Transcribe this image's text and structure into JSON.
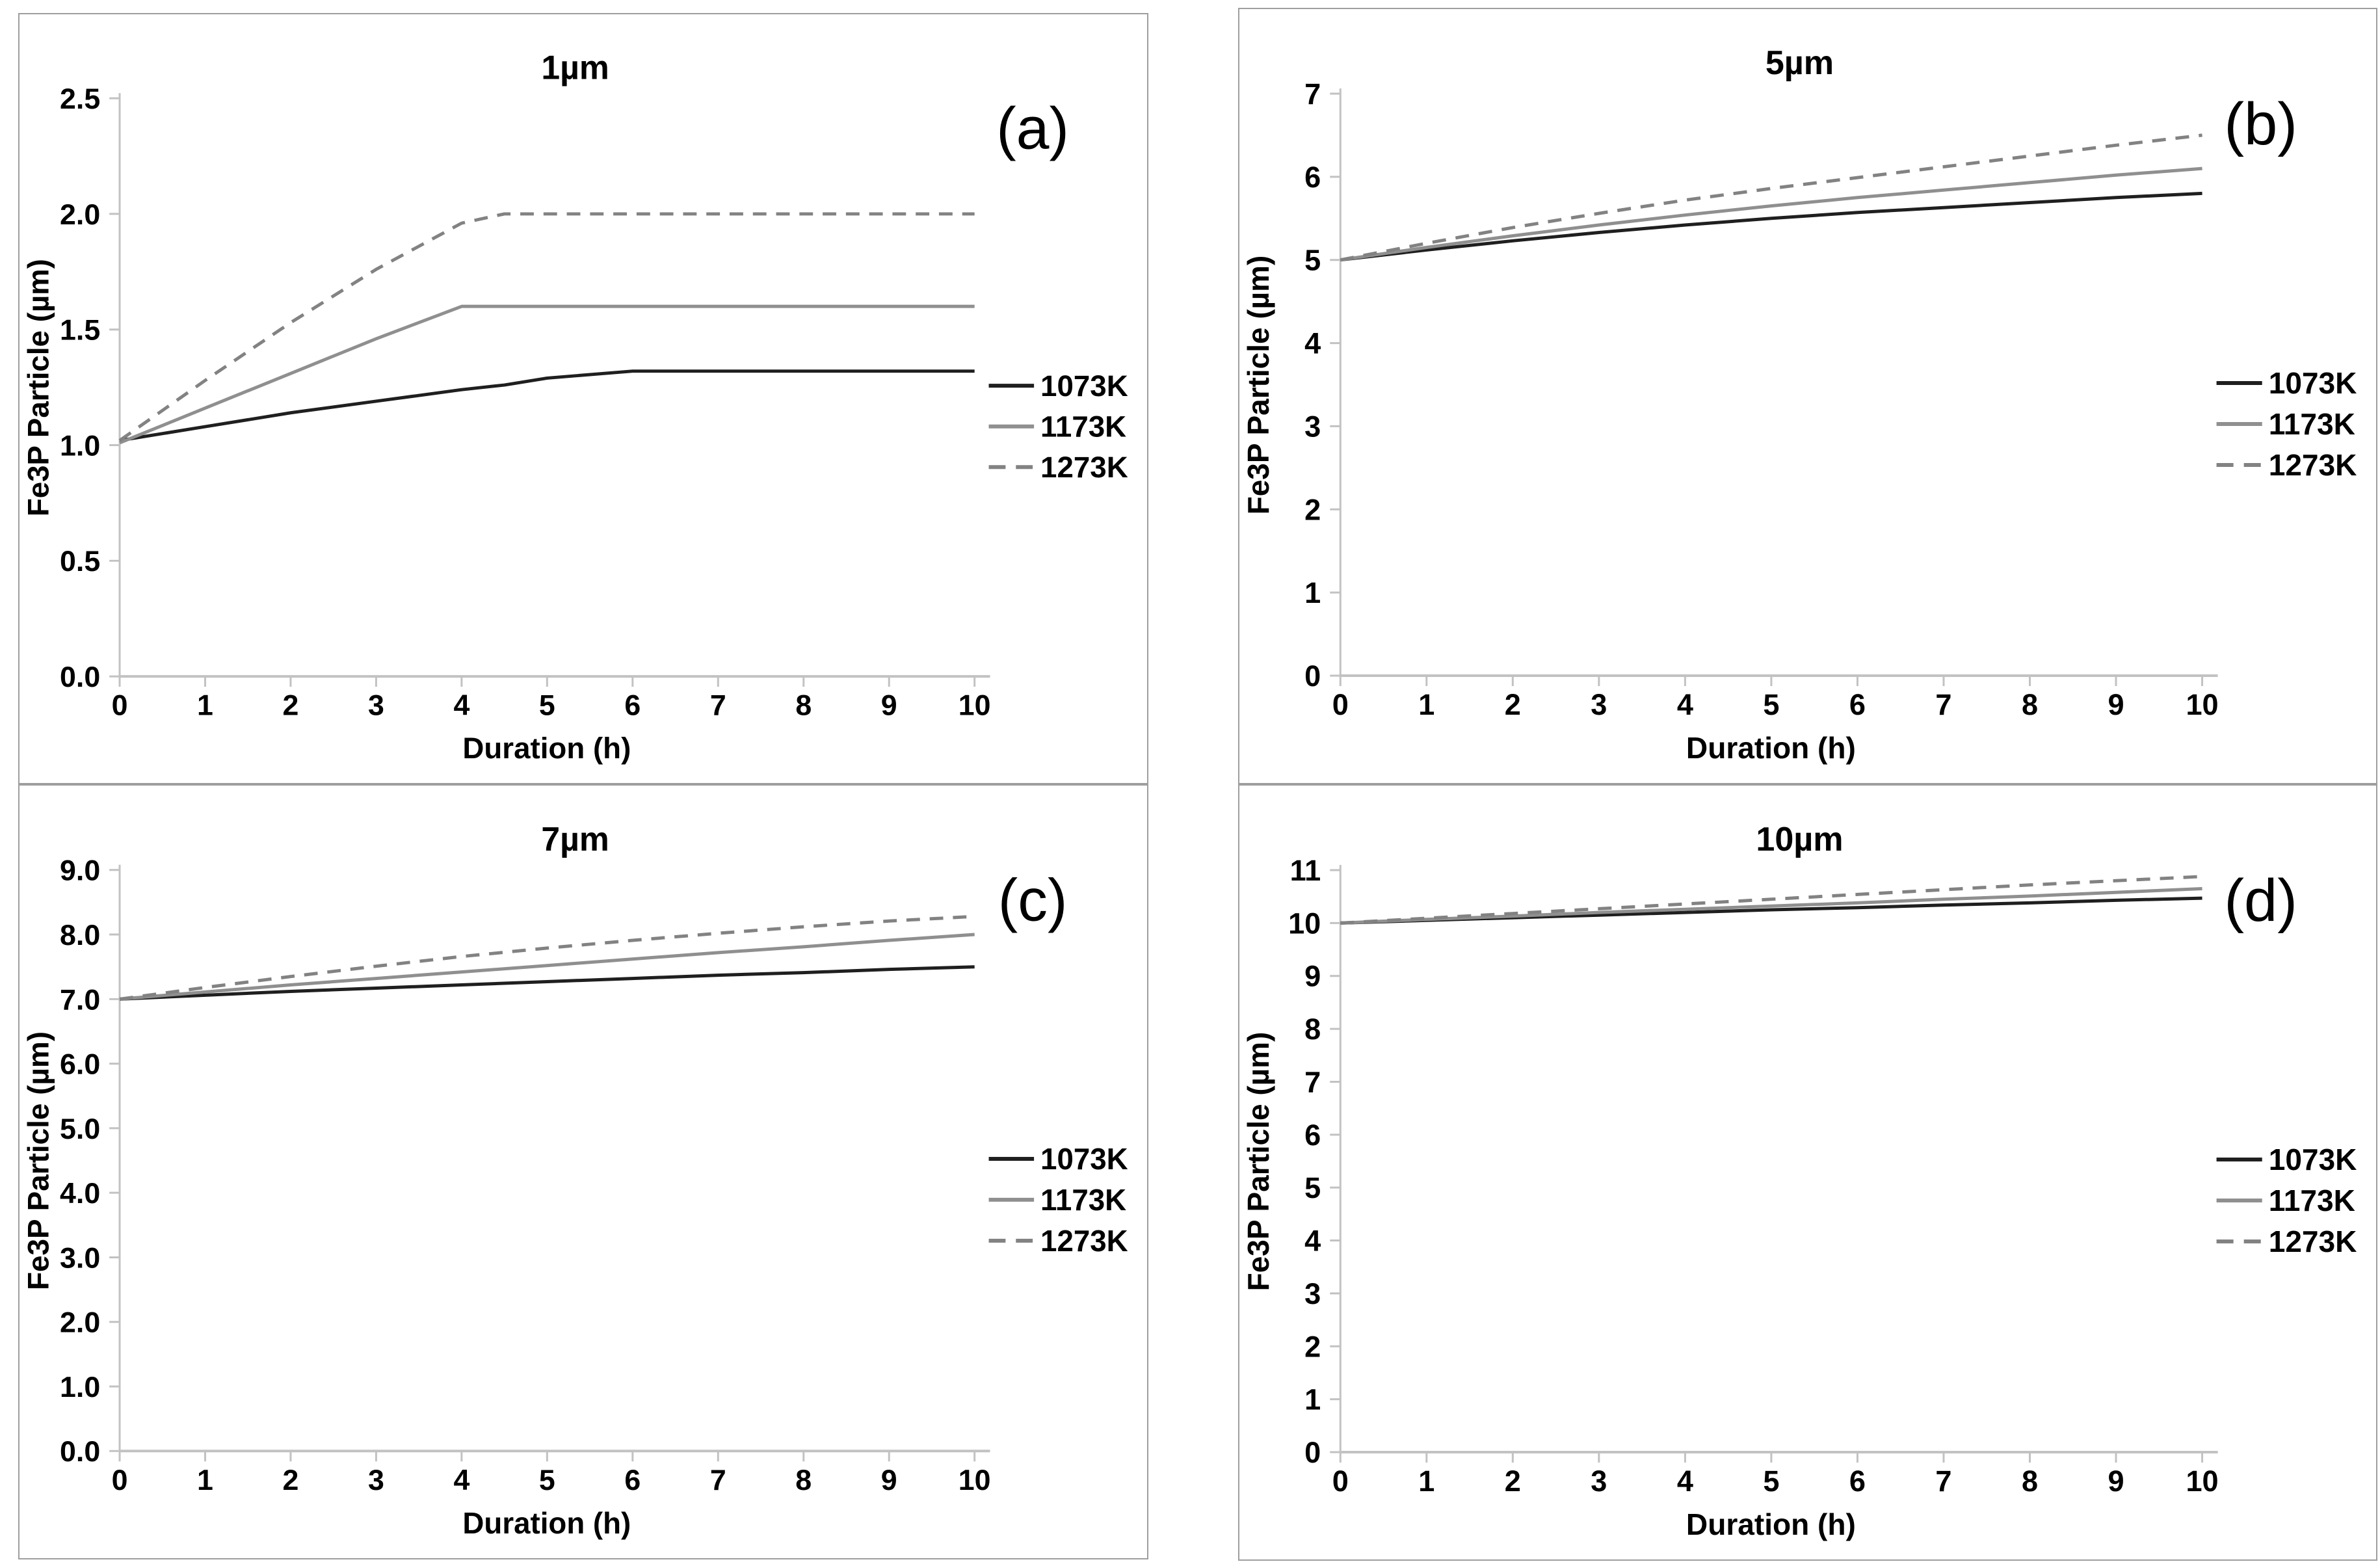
{
  "figure": {
    "x_axis_label": "Duration (h)",
    "y_axis_label": "Fe3P Particle (µm)",
    "background_color": "#ffffff",
    "panel_border_color": "#9e9e9e",
    "axis_color": "#c2c2c2",
    "text_color": "#000000"
  },
  "legend": {
    "position": "right-of-plot",
    "entries": [
      {
        "label": "1073K",
        "style": "solid-dark",
        "color": "#1f1f1f",
        "dashed": false
      },
      {
        "label": "1173K",
        "style": "solid-gray",
        "color": "#8f8f8f",
        "dashed": false
      },
      {
        "label": "1273K",
        "style": "dashed-gray",
        "color": "#828282",
        "dashed": true
      }
    ]
  },
  "chart_data": [
    {
      "type": "line",
      "panel_label": "(a)",
      "title": "1µm",
      "xlabel": "Duration (h)",
      "ylabel": "Fe3P Particle (µm)",
      "xlim": [
        0,
        10
      ],
      "ylim": [
        0,
        2.5
      ],
      "x_ticks": [
        "0",
        "1",
        "2",
        "3",
        "4",
        "5",
        "6",
        "7",
        "8",
        "9",
        "10"
      ],
      "y_ticks": [
        "0.0",
        "0.5",
        "1.0",
        "1.5",
        "2.0",
        "2.5"
      ],
      "grid": false,
      "legend_position": "right",
      "x": [
        0,
        1,
        2,
        3,
        4,
        4.5,
        5,
        6,
        7,
        8,
        9,
        10
      ],
      "series": [
        {
          "name": "1073K",
          "values": [
            1.02,
            1.08,
            1.14,
            1.19,
            1.24,
            1.26,
            1.29,
            1.32,
            1.32,
            1.32,
            1.32,
            1.32
          ]
        },
        {
          "name": "1173K",
          "values": [
            1.01,
            1.16,
            1.31,
            1.46,
            1.6,
            1.6,
            1.6,
            1.6,
            1.6,
            1.6,
            1.6,
            1.6
          ]
        },
        {
          "name": "1273K",
          "values": [
            1.02,
            1.28,
            1.53,
            1.76,
            1.96,
            2.0,
            2.0,
            2.0,
            2.0,
            2.0,
            2.0,
            2.0
          ]
        }
      ]
    },
    {
      "type": "line",
      "panel_label": "(b)",
      "title": "5µm",
      "xlabel": "Duration (h)",
      "ylabel": "Fe3P Particle (µm)",
      "xlim": [
        0,
        10
      ],
      "ylim": [
        0,
        7
      ],
      "x_ticks": [
        "0",
        "1",
        "2",
        "3",
        "4",
        "5",
        "6",
        "7",
        "8",
        "9",
        "10"
      ],
      "y_ticks": [
        "0",
        "1",
        "2",
        "3",
        "4",
        "5",
        "6",
        "7"
      ],
      "grid": false,
      "legend_position": "right",
      "x": [
        0,
        1,
        2,
        3,
        4,
        5,
        6,
        7,
        8,
        9,
        10
      ],
      "series": [
        {
          "name": "1073K",
          "values": [
            5.0,
            5.12,
            5.23,
            5.33,
            5.42,
            5.5,
            5.57,
            5.63,
            5.69,
            5.75,
            5.8
          ]
        },
        {
          "name": "1173K",
          "values": [
            5.0,
            5.15,
            5.29,
            5.42,
            5.54,
            5.65,
            5.75,
            5.84,
            5.93,
            6.02,
            6.1
          ]
        },
        {
          "name": "1273K",
          "values": [
            5.0,
            5.2,
            5.39,
            5.56,
            5.72,
            5.86,
            5.99,
            6.12,
            6.25,
            6.38,
            6.5
          ]
        }
      ]
    },
    {
      "type": "line",
      "panel_label": "(c)",
      "title": "7µm",
      "xlabel": "Duration (h)",
      "ylabel": "Fe3P Particle (µm)",
      "xlim": [
        0,
        10
      ],
      "ylim": [
        0,
        9
      ],
      "x_ticks": [
        "0",
        "1",
        "2",
        "3",
        "4",
        "5",
        "6",
        "7",
        "8",
        "9",
        "10"
      ],
      "y_ticks": [
        "0.0",
        "1.0",
        "2.0",
        "3.0",
        "4.0",
        "5.0",
        "6.0",
        "7.0",
        "8.0",
        "9.0"
      ],
      "grid": false,
      "legend_position": "right",
      "x": [
        0,
        1,
        2,
        3,
        4,
        5,
        6,
        7,
        8,
        9,
        10
      ],
      "series": [
        {
          "name": "1073K",
          "values": [
            7.0,
            7.06,
            7.12,
            7.17,
            7.22,
            7.27,
            7.32,
            7.37,
            7.41,
            7.46,
            7.5
          ]
        },
        {
          "name": "1173K",
          "values": [
            7.0,
            7.11,
            7.22,
            7.32,
            7.42,
            7.52,
            7.62,
            7.72,
            7.81,
            7.91,
            8.0
          ]
        },
        {
          "name": "1273K",
          "values": [
            7.0,
            7.18,
            7.35,
            7.51,
            7.66,
            7.79,
            7.91,
            8.02,
            8.12,
            8.21,
            8.28
          ]
        }
      ]
    },
    {
      "type": "line",
      "panel_label": "(d)",
      "title": "10µm",
      "xlabel": "Duration (h)",
      "ylabel": "Fe3P Particle (µm)",
      "xlim": [
        0,
        10
      ],
      "ylim": [
        0,
        11
      ],
      "x_ticks": [
        "0",
        "1",
        "2",
        "3",
        "4",
        "5",
        "6",
        "7",
        "8",
        "9",
        "10"
      ],
      "y_ticks": [
        "0",
        "1",
        "2",
        "3",
        "4",
        "5",
        "6",
        "7",
        "8",
        "9",
        "10",
        "11"
      ],
      "grid": false,
      "legend_position": "right",
      "x": [
        0,
        1,
        2,
        3,
        4,
        5,
        6,
        7,
        8,
        9,
        10
      ],
      "series": [
        {
          "name": "1073K",
          "values": [
            10.0,
            10.05,
            10.1,
            10.15,
            10.2,
            10.25,
            10.29,
            10.34,
            10.38,
            10.43,
            10.47
          ]
        },
        {
          "name": "1173K",
          "values": [
            10.0,
            10.07,
            10.13,
            10.2,
            10.26,
            10.32,
            10.38,
            10.45,
            10.51,
            10.58,
            10.65
          ]
        },
        {
          "name": "1273K",
          "values": [
            10.0,
            10.09,
            10.18,
            10.27,
            10.36,
            10.45,
            10.54,
            10.63,
            10.72,
            10.8,
            10.88
          ]
        }
      ]
    }
  ]
}
